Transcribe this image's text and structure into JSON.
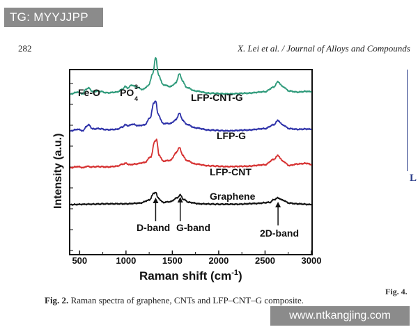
{
  "watermark_top": "TG: MYYJJPP",
  "watermark_bottom": "www.ntkangjing.com",
  "header": {
    "page_number": "282",
    "running_head": "X. Lei et al. / Journal of Alloys and Compounds"
  },
  "caption": {
    "label": "Fig. 2.",
    "text": " Raman spectra of graphene, CNTs and LFP–CNT–G composite."
  },
  "side": {
    "fig_label": "Fig. 4.",
    "letter": "L"
  },
  "chart_data": {
    "type": "line",
    "xlabel": "Raman shift (cm",
    "xlabel_sup": "-1",
    "xlabel_end": ")",
    "ylabel": "Intensity (a.u.)",
    "xlim": [
      400,
      3000
    ],
    "xticks": [
      500,
      1000,
      1500,
      2000,
      2500,
      3000
    ],
    "y_tick_labels_shown": false,
    "series": [
      {
        "name": "LFP-CNT-G",
        "color": "#2e9a7a",
        "offset": 3.0,
        "points": [
          [
            400,
            0.0
          ],
          [
            480,
            0.05
          ],
          [
            540,
            0.0
          ],
          [
            560,
            0.12
          ],
          [
            600,
            0.16
          ],
          [
            640,
            0.06
          ],
          [
            700,
            0.08
          ],
          [
            800,
            0.03
          ],
          [
            900,
            0.05
          ],
          [
            960,
            0.12
          ],
          [
            990,
            0.2
          ],
          [
            1020,
            0.16
          ],
          [
            1060,
            0.24
          ],
          [
            1120,
            0.18
          ],
          [
            1180,
            0.12
          ],
          [
            1240,
            0.22
          ],
          [
            1290,
            0.55
          ],
          [
            1320,
            1.0
          ],
          [
            1350,
            0.52
          ],
          [
            1400,
            0.25
          ],
          [
            1480,
            0.2
          ],
          [
            1540,
            0.3
          ],
          [
            1575,
            0.55
          ],
          [
            1610,
            0.36
          ],
          [
            1650,
            0.18
          ],
          [
            1750,
            0.08
          ],
          [
            1900,
            0.02
          ],
          [
            2100,
            0.0
          ],
          [
            2300,
            0.02
          ],
          [
            2500,
            0.06
          ],
          [
            2590,
            0.18
          ],
          [
            2640,
            0.33
          ],
          [
            2690,
            0.2
          ],
          [
            2760,
            0.08
          ],
          [
            2850,
            0.05
          ],
          [
            2950,
            0.07
          ],
          [
            3000,
            0.06
          ]
        ]
      },
      {
        "name": "LFP-G",
        "color": "#2b2fa8",
        "offset": 2.0,
        "points": [
          [
            400,
            0.0
          ],
          [
            480,
            0.04
          ],
          [
            540,
            0.0
          ],
          [
            570,
            0.12
          ],
          [
            600,
            0.16
          ],
          [
            640,
            0.05
          ],
          [
            700,
            0.06
          ],
          [
            800,
            0.03
          ],
          [
            900,
            0.04
          ],
          [
            960,
            0.1
          ],
          [
            990,
            0.16
          ],
          [
            1030,
            0.14
          ],
          [
            1070,
            0.18
          ],
          [
            1130,
            0.14
          ],
          [
            1200,
            0.16
          ],
          [
            1260,
            0.35
          ],
          [
            1300,
            0.75
          ],
          [
            1320,
            0.82
          ],
          [
            1345,
            0.45
          ],
          [
            1400,
            0.2
          ],
          [
            1480,
            0.2
          ],
          [
            1540,
            0.3
          ],
          [
            1575,
            0.48
          ],
          [
            1610,
            0.3
          ],
          [
            1650,
            0.18
          ],
          [
            1750,
            0.08
          ],
          [
            1900,
            0.02
          ],
          [
            2100,
            0.0
          ],
          [
            2300,
            0.02
          ],
          [
            2500,
            0.06
          ],
          [
            2590,
            0.16
          ],
          [
            2640,
            0.28
          ],
          [
            2690,
            0.16
          ],
          [
            2760,
            0.06
          ],
          [
            2850,
            0.04
          ],
          [
            2950,
            0.05
          ],
          [
            3000,
            0.04
          ]
        ]
      },
      {
        "name": "LFP-CNT",
        "color": "#d63030",
        "offset": 1.0,
        "points": [
          [
            400,
            0.0
          ],
          [
            480,
            0.03
          ],
          [
            540,
            0.0
          ],
          [
            580,
            0.04
          ],
          [
            620,
            0.02
          ],
          [
            700,
            0.03
          ],
          [
            800,
            0.02
          ],
          [
            900,
            0.04
          ],
          [
            970,
            0.1
          ],
          [
            1000,
            0.12
          ],
          [
            1040,
            0.08
          ],
          [
            1100,
            0.1
          ],
          [
            1200,
            0.14
          ],
          [
            1270,
            0.3
          ],
          [
            1310,
            0.72
          ],
          [
            1330,
            0.76
          ],
          [
            1355,
            0.35
          ],
          [
            1400,
            0.18
          ],
          [
            1480,
            0.2
          ],
          [
            1540,
            0.4
          ],
          [
            1575,
            0.55
          ],
          [
            1610,
            0.35
          ],
          [
            1650,
            0.2
          ],
          [
            1750,
            0.1
          ],
          [
            1900,
            0.05
          ],
          [
            2100,
            0.03
          ],
          [
            2300,
            0.04
          ],
          [
            2500,
            0.08
          ],
          [
            2590,
            0.22
          ],
          [
            2640,
            0.33
          ],
          [
            2690,
            0.18
          ],
          [
            2760,
            0.06
          ],
          [
            2850,
            0.1
          ],
          [
            2950,
            0.12
          ],
          [
            3000,
            0.08
          ]
        ]
      },
      {
        "name": "Graphene",
        "color": "#111111",
        "offset": 0.0,
        "points": [
          [
            400,
            0.0
          ],
          [
            600,
            0.01
          ],
          [
            800,
            0.02
          ],
          [
            1000,
            0.02
          ],
          [
            1150,
            0.04
          ],
          [
            1250,
            0.12
          ],
          [
            1300,
            0.3
          ],
          [
            1320,
            0.34
          ],
          [
            1345,
            0.18
          ],
          [
            1400,
            0.06
          ],
          [
            1480,
            0.08
          ],
          [
            1550,
            0.18
          ],
          [
            1585,
            0.26
          ],
          [
            1620,
            0.14
          ],
          [
            1680,
            0.06
          ],
          [
            1800,
            0.02
          ],
          [
            2000,
            0.01
          ],
          [
            2200,
            0.01
          ],
          [
            2400,
            0.03
          ],
          [
            2550,
            0.06
          ],
          [
            2600,
            0.14
          ],
          [
            2640,
            0.18
          ],
          [
            2690,
            0.12
          ],
          [
            2760,
            0.04
          ],
          [
            2850,
            0.02
          ],
          [
            3000,
            0.0
          ]
        ]
      }
    ],
    "annotations": {
      "fe_o": "Fe-O",
      "po4_base": "PO",
      "po4_sub": "4",
      "po4_sup": "3-",
      "d_band": "D-band",
      "g_band": "G-band",
      "band_2d": "2D-band"
    }
  }
}
